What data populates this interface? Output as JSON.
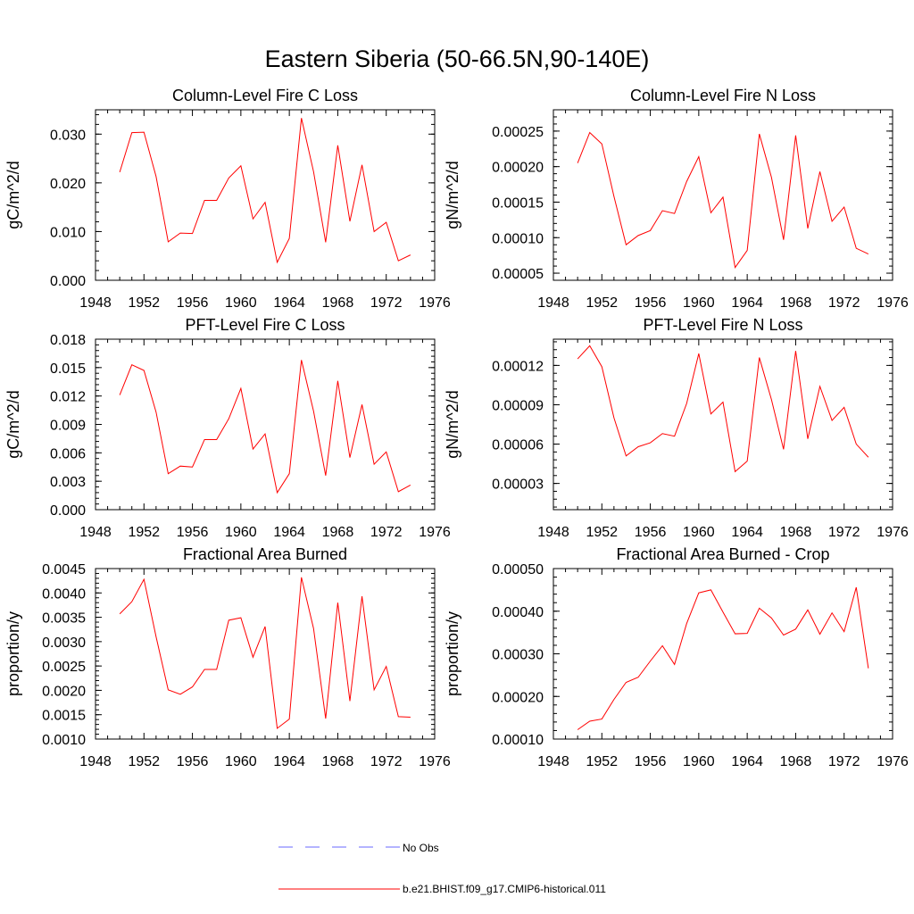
{
  "figure": {
    "title": "Eastern Siberia (50-66.5N,90-140E)",
    "line_color": "#ff0000",
    "obs_color": "#6a6aff",
    "legend": {
      "obs_label": "No Obs",
      "model_label": "b.e21.BHIST.f09_g17.CMIP6-historical.011"
    }
  },
  "chart_data": [
    {
      "type": "line",
      "title": "Column-Level Fire C Loss",
      "ylabel": "gC/m^2/d",
      "xlim": [
        1948,
        1976
      ],
      "ylim": [
        0,
        0.035
      ],
      "xticks": [
        "1948",
        "1952",
        "1956",
        "1960",
        "1964",
        "1968",
        "1972",
        "1976"
      ],
      "yticks": [
        "0.000",
        "0.010",
        "0.020",
        "0.030"
      ],
      "x": [
        1950,
        1951,
        1952,
        1953,
        1954,
        1955,
        1956,
        1957,
        1958,
        1959,
        1960,
        1961,
        1962,
        1963,
        1964,
        1965,
        1966,
        1967,
        1968,
        1969,
        1970,
        1971,
        1972,
        1973,
        1974
      ],
      "series": [
        {
          "values": [
            0.0222,
            0.0303,
            0.0304,
            0.0213,
            0.0079,
            0.0097,
            0.0096,
            0.0164,
            0.0164,
            0.021,
            0.0235,
            0.0126,
            0.016,
            0.0037,
            0.0086,
            0.0333,
            0.0223,
            0.0078,
            0.0277,
            0.0121,
            0.0237,
            0.01,
            0.0119,
            0.004,
            0.0052
          ]
        }
      ]
    },
    {
      "type": "line",
      "title": "Column-Level Fire N Loss",
      "ylabel": "gN/m^2/d",
      "xlim": [
        1948,
        1976
      ],
      "ylim": [
        4e-05,
        0.00028
      ],
      "xticks": [
        "1948",
        "1952",
        "1956",
        "1960",
        "1964",
        "1968",
        "1972",
        "1976"
      ],
      "yticks": [
        "0.00005",
        "0.00010",
        "0.00015",
        "0.00020",
        "0.00025"
      ],
      "x": [
        1950,
        1951,
        1952,
        1953,
        1954,
        1955,
        1956,
        1957,
        1958,
        1959,
        1960,
        1961,
        1962,
        1963,
        1964,
        1965,
        1966,
        1967,
        1968,
        1969,
        1970,
        1971,
        1972,
        1973,
        1974
      ],
      "series": [
        {
          "values": [
            0.000205,
            0.000248,
            0.000232,
            0.000158,
            9e-05,
            0.000103,
            0.00011,
            0.000138,
            0.000134,
            0.000179,
            0.000214,
            0.000135,
            0.000157,
            5.8e-05,
            8.2e-05,
            0.000246,
            0.000185,
            9.7e-05,
            0.000244,
            0.000113,
            0.000193,
            0.000123,
            0.000143,
            8.5e-05,
            7.7e-05
          ]
        }
      ]
    },
    {
      "type": "line",
      "title": "PFT-Level Fire C Loss",
      "ylabel": "gC/m^2/d",
      "xlim": [
        1948,
        1976
      ],
      "ylim": [
        0,
        0.018
      ],
      "xticks": [
        "1948",
        "1952",
        "1956",
        "1960",
        "1964",
        "1968",
        "1972",
        "1976"
      ],
      "yticks": [
        "0.000",
        "0.003",
        "0.006",
        "0.009",
        "0.012",
        "0.015",
        "0.018"
      ],
      "x": [
        1950,
        1951,
        1952,
        1953,
        1954,
        1955,
        1956,
        1957,
        1958,
        1959,
        1960,
        1961,
        1962,
        1963,
        1964,
        1965,
        1966,
        1967,
        1968,
        1969,
        1970,
        1971,
        1972,
        1973,
        1974
      ],
      "series": [
        {
          "values": [
            0.0121,
            0.0153,
            0.0147,
            0.0103,
            0.0038,
            0.0046,
            0.0045,
            0.0074,
            0.0074,
            0.0096,
            0.0128,
            0.0064,
            0.008,
            0.0018,
            0.0038,
            0.0158,
            0.0104,
            0.0036,
            0.0136,
            0.0055,
            0.0111,
            0.0048,
            0.0061,
            0.0019,
            0.0026
          ]
        }
      ]
    },
    {
      "type": "line",
      "title": "PFT-Level Fire N Loss",
      "ylabel": "gN/m^2/d",
      "xlim": [
        1948,
        1976
      ],
      "ylim": [
        1e-05,
        0.00014
      ],
      "xticks": [
        "1948",
        "1952",
        "1956",
        "1960",
        "1964",
        "1968",
        "1972",
        "1976"
      ],
      "yticks": [
        "0.00003",
        "0.00006",
        "0.00009",
        "0.00012"
      ],
      "x": [
        1950,
        1951,
        1952,
        1953,
        1954,
        1955,
        1956,
        1957,
        1958,
        1959,
        1960,
        1961,
        1962,
        1963,
        1964,
        1965,
        1966,
        1967,
        1968,
        1969,
        1970,
        1971,
        1972,
        1973,
        1974
      ],
      "series": [
        {
          "values": [
            0.000125,
            0.000135,
            0.000119,
            8e-05,
            5.1e-05,
            5.8e-05,
            6.1e-05,
            6.8e-05,
            6.6e-05,
            9.1e-05,
            0.000129,
            8.3e-05,
            9.2e-05,
            3.9e-05,
            4.7e-05,
            0.000126,
            9.4e-05,
            5.6e-05,
            0.000131,
            6.4e-05,
            0.000104,
            7.8e-05,
            8.8e-05,
            6e-05,
            5e-05
          ]
        }
      ]
    },
    {
      "type": "line",
      "title": "Fractional Area Burned",
      "ylabel": "proportion/y",
      "xlim": [
        1948,
        1976
      ],
      "ylim": [
        0.001,
        0.0045
      ],
      "xticks": [
        "1948",
        "1952",
        "1956",
        "1960",
        "1964",
        "1968",
        "1972",
        "1976"
      ],
      "yticks": [
        "0.0010",
        "0.0015",
        "0.0020",
        "0.0025",
        "0.0030",
        "0.0035",
        "0.0040",
        "0.0045"
      ],
      "x": [
        1950,
        1951,
        1952,
        1953,
        1954,
        1955,
        1956,
        1957,
        1958,
        1959,
        1960,
        1961,
        1962,
        1963,
        1964,
        1965,
        1966,
        1967,
        1968,
        1969,
        1970,
        1971,
        1972,
        1973,
        1974
      ],
      "series": [
        {
          "values": [
            0.00357,
            0.00382,
            0.00428,
            0.0031,
            0.00201,
            0.00192,
            0.00207,
            0.00243,
            0.00243,
            0.00344,
            0.00349,
            0.00268,
            0.00331,
            0.00122,
            0.00141,
            0.00432,
            0.00327,
            0.00142,
            0.0038,
            0.00178,
            0.00393,
            0.00201,
            0.00249,
            0.00146,
            0.00145
          ]
        }
      ]
    },
    {
      "type": "line",
      "title": "Fractional Area Burned - Crop",
      "ylabel": "proportion/y",
      "xlim": [
        1948,
        1976
      ],
      "ylim": [
        0.0001,
        0.0005
      ],
      "xticks": [
        "1948",
        "1952",
        "1956",
        "1960",
        "1964",
        "1968",
        "1972",
        "1976"
      ],
      "yticks": [
        "0.00010",
        "0.00020",
        "0.00030",
        "0.00040",
        "0.00050"
      ],
      "x": [
        1950,
        1951,
        1952,
        1953,
        1954,
        1955,
        1956,
        1957,
        1958,
        1959,
        1960,
        1961,
        1962,
        1963,
        1964,
        1965,
        1966,
        1967,
        1968,
        1969,
        1970,
        1971,
        1972,
        1973,
        1974
      ],
      "series": [
        {
          "values": [
            0.000122,
            0.000142,
            0.000147,
            0.000193,
            0.000233,
            0.000245,
            0.000283,
            0.000319,
            0.000275,
            0.000371,
            0.000443,
            0.00045,
            0.000398,
            0.000347,
            0.000348,
            0.000407,
            0.000384,
            0.000344,
            0.000358,
            0.000403,
            0.000346,
            0.000396,
            0.000352,
            0.000456,
            0.000266
          ]
        }
      ]
    }
  ]
}
